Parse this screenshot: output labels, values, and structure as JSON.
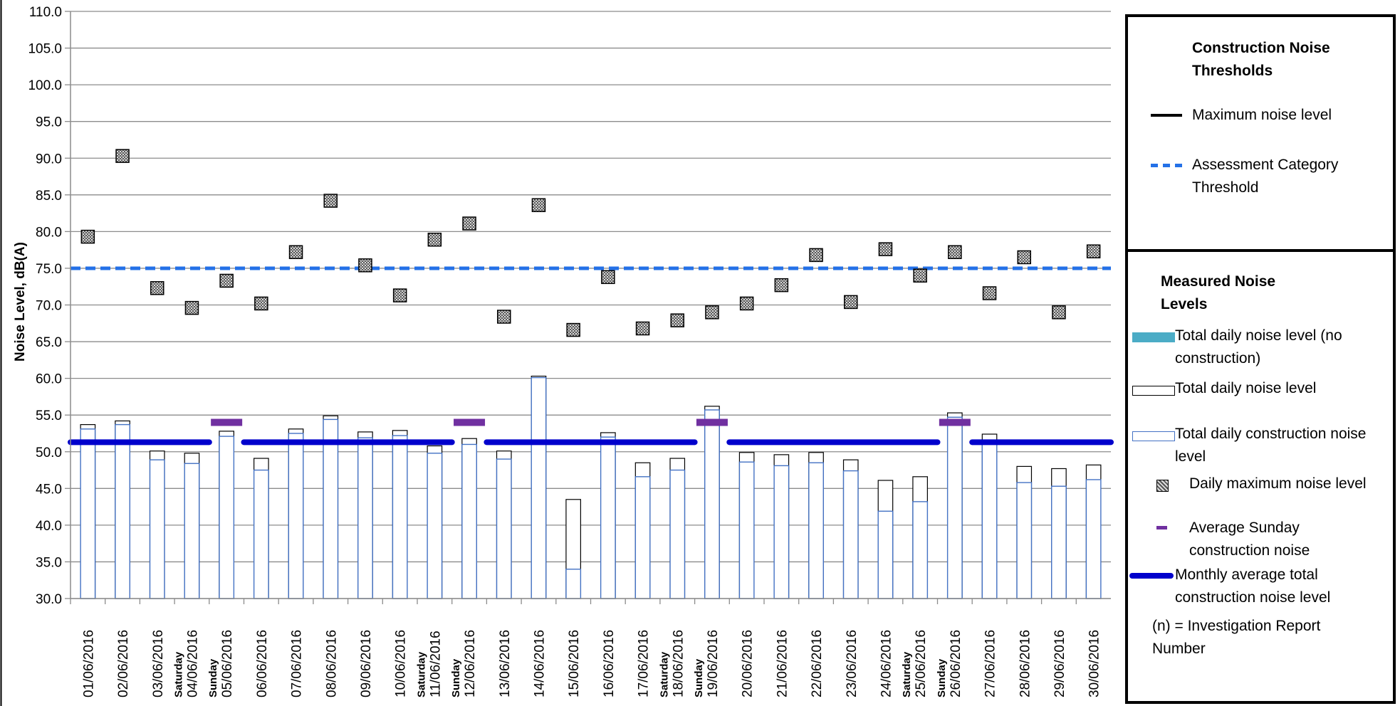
{
  "chart_data": {
    "type": "bar",
    "ylabel": "Noise Level, dB(A)",
    "xlabel": "",
    "ylim": [
      30.0,
      110.0
    ],
    "ytick_step": 5,
    "y_tick_labels": [
      "30.0",
      "35.0",
      "40.0",
      "45.0",
      "50.0",
      "55.0",
      "60.0",
      "65.0",
      "70.0",
      "75.0",
      "80.0",
      "85.0",
      "90.0",
      "95.0",
      "100.0",
      "105.0",
      "110.0"
    ],
    "grid": true,
    "categories": [
      "01/06/2016",
      "02/06/2016",
      "03/06/2016",
      "04/06/2016",
      "05/06/2016",
      "06/06/2016",
      "07/06/2016",
      "08/06/2016",
      "09/06/2016",
      "10/06/2016",
      "11/06/2016",
      "12/06/2016",
      "13/06/2016",
      "14/06/2016",
      "15/06/2016",
      "16/06/2016",
      "17/06/2016",
      "18/06/2016",
      "19/06/2016",
      "20/06/2016",
      "21/06/2016",
      "22/06/2016",
      "23/06/2016",
      "24/06/2016",
      "25/06/2016",
      "26/06/2016",
      "27/06/2016",
      "28/06/2016",
      "29/06/2016",
      "30/06/2016"
    ],
    "day_tags": [
      "",
      "",
      "",
      "Saturday",
      "Sunday",
      "",
      "",
      "",
      "",
      "",
      "Saturday",
      "Sunday",
      "",
      "",
      "",
      "",
      "",
      "Saturday",
      "Sunday",
      "",
      "",
      "",
      "",
      "",
      "Saturday",
      "Sunday",
      "",
      "",
      "",
      ""
    ],
    "series": [
      {
        "name": "Total daily construction noise level",
        "kind": "bar",
        "color": "#4472c4",
        "values": [
          53.1,
          53.7,
          48.9,
          48.4,
          52.1,
          47.5,
          52.5,
          54.4,
          51.9,
          52.2,
          49.8,
          51.0,
          49.0,
          60.1,
          34.0,
          52.0,
          46.6,
          47.5,
          55.7,
          48.6,
          48.1,
          48.5,
          47.4,
          41.9,
          43.2,
          54.7,
          51.5,
          45.8,
          45.3,
          46.2
        ]
      },
      {
        "name": "Total daily noise level",
        "kind": "bar",
        "color": "#000000",
        "values": [
          53.7,
          54.2,
          50.1,
          49.8,
          52.8,
          49.1,
          53.1,
          54.9,
          52.7,
          52.9,
          50.8,
          51.8,
          50.1,
          60.3,
          43.5,
          52.6,
          48.5,
          49.1,
          56.2,
          49.9,
          49.6,
          49.9,
          48.9,
          46.1,
          46.6,
          55.3,
          52.4,
          48.0,
          47.7,
          48.2
        ]
      },
      {
        "name": "Daily maximum noise level",
        "kind": "marker",
        "color": "#404040",
        "values": [
          79.3,
          90.3,
          72.3,
          69.6,
          73.3,
          70.2,
          77.2,
          84.2,
          75.4,
          71.3,
          78.9,
          81.1,
          68.4,
          83.6,
          66.6,
          73.8,
          66.8,
          67.9,
          69.0,
          70.2,
          72.7,
          76.8,
          70.4,
          77.6,
          74.0,
          77.2,
          71.6,
          76.5,
          69.0,
          77.3
        ]
      }
    ],
    "thresholds": [
      {
        "name": "Assessment Category Threshold",
        "value": 75.0,
        "color": "#2471e7"
      }
    ],
    "sunday_averages": {
      "name": "Average Sunday construction noise",
      "color": "#7030a0",
      "value": 54.0,
      "days": [
        4,
        11,
        18,
        25
      ]
    },
    "monthly_averages": {
      "name": "Monthly average total construction noise level",
      "color": "#0000cc",
      "value": 51.3,
      "segments": [
        [
          0,
          3
        ],
        [
          5,
          10
        ],
        [
          12,
          17
        ],
        [
          19,
          24
        ],
        [
          26,
          29
        ]
      ]
    }
  },
  "legend_thresholds": {
    "title": "Construction Noise Thresholds",
    "items": [
      {
        "label": "Maximum noise level",
        "color": "#000000"
      },
      {
        "label": "Assessment Category Threshold",
        "color": "#2471e7"
      }
    ]
  },
  "legend_measured": {
    "title": "Measured Noise Levels",
    "items": [
      {
        "label": "Total daily noise level (no construction)",
        "color": "#4bacc6"
      },
      {
        "label": "Total daily noise level",
        "color": "#000000"
      },
      {
        "label": "Total daily construction noise level",
        "color": "#4472c4"
      },
      {
        "label": "Daily maximum noise level",
        "color": "#404040"
      },
      {
        "label": "Average Sunday construction noise",
        "color": "#7030a0"
      },
      {
        "label": "Monthly average total construction noise level",
        "color": "#0000cc"
      },
      {
        "label": "(n) = Investigation Report Number",
        "color": ""
      }
    ]
  }
}
